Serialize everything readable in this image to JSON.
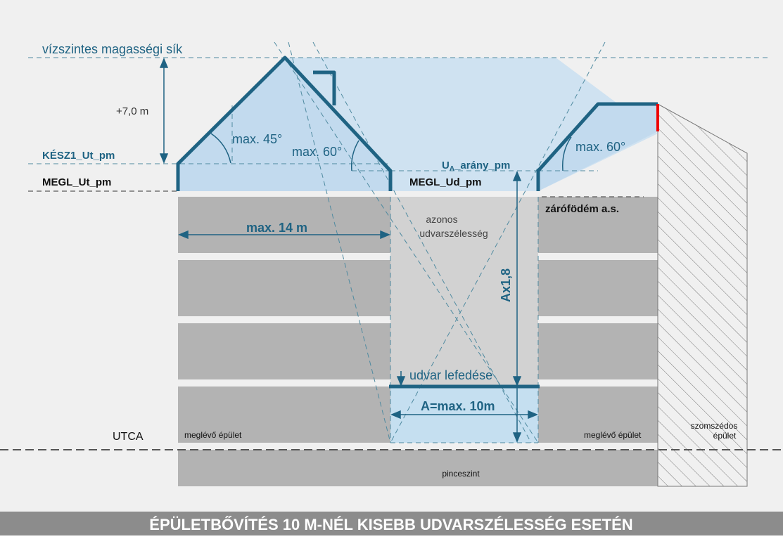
{
  "labels": {
    "plane": "vízszintes magasségi sík",
    "height": "+7,0 m",
    "kesz": "KÉSZ1_Ut_pm",
    "megl_ut": "MEGL_Ut_pm",
    "angle45": "max. 45°",
    "angle60_left": "max. 60°",
    "angle60_right": "max. 60°",
    "ua_main": "U",
    "ua_sub": "A",
    "ua_rest": "_arány_pm",
    "megl_ud": "MEGL_Ud_pm",
    "zarofodem": "zárófödém a.s.",
    "width14": "max. 14 m",
    "same_width_1": "azonos",
    "same_width_2": "udvarszélesség",
    "ax18": "Ax1,8",
    "udvar": "udvar lefedése",
    "a10": "A=max. 10m",
    "utca": "UTCA",
    "existing_left": "meglévő épület",
    "existing_right": "meglévő épület",
    "neighbor_1": "szomszédos",
    "neighbor_2": "épület",
    "basement": "pinceszint"
  },
  "footer": "ÉPÜLETBŐVÍTÉS 10 M-NÉL KISEBB UDVARSZÉLESSÉG ESETÉN"
}
